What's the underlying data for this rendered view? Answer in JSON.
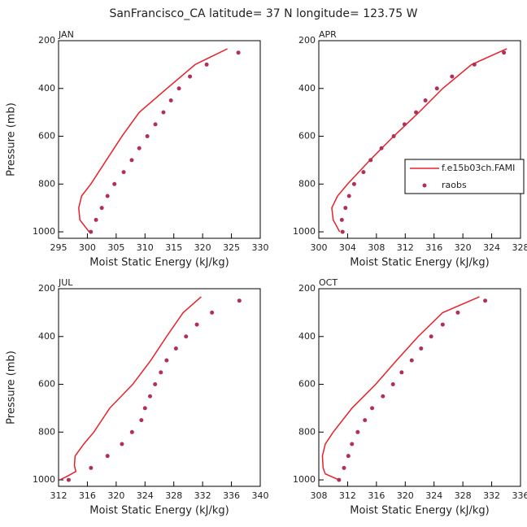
{
  "title": "SanFrancisco_CA  latitude= 37 N longitude= 123.75 W",
  "chart_data": [
    {
      "type": "line",
      "title": "JAN",
      "xlabel": "Moist Static Energy (kJ/kg)",
      "ylabel": "Pressure (mb)",
      "xlim": [
        295,
        330
      ],
      "xticks": [
        295,
        300,
        305,
        310,
        315,
        320,
        325,
        330
      ],
      "ylim": [
        1027,
        200
      ],
      "yticks": [
        200,
        400,
        600,
        800,
        1000
      ],
      "series": [
        {
          "name": "f.e15b03ch.FAMI",
          "color": "#e8202a",
          "style": "line",
          "x": [
            300.3,
            298.7,
            298.5,
            299,
            300.6,
            306,
            309,
            313.8,
            318.7,
            324.3
          ],
          "values": [
            1000,
            950,
            900,
            850,
            800,
            600,
            500,
            400,
            300,
            234
          ]
        },
        {
          "name": "raobs",
          "color": "#b0305a",
          "style": "points",
          "x": [
            300.6,
            301.5,
            302.5,
            303.5,
            304.7,
            306.3,
            307.7,
            309,
            310.4,
            311.8,
            313.2,
            314.5,
            315.9,
            317.8,
            320.7,
            326.2
          ],
          "values": [
            1000,
            950,
            900,
            850,
            800,
            750,
            700,
            650,
            600,
            550,
            500,
            450,
            400,
            350,
            300,
            250
          ]
        }
      ]
    },
    {
      "type": "line",
      "title": "APR",
      "xlabel": "Moist Static Energy (kJ/kg)",
      "legend": "right",
      "xlim": [
        300,
        328
      ],
      "xticks": [
        300,
        304,
        308,
        312,
        316,
        320,
        324,
        328
      ],
      "ylim": [
        1027,
        200
      ],
      "yticks": [
        200,
        400,
        600,
        800,
        1000
      ],
      "series": [
        {
          "name": "f.e15b03ch.FAMI",
          "color": "#e8202a",
          "style": "line",
          "x": [
            302.9,
            302,
            301.8,
            302.6,
            304,
            307.1,
            310.4,
            313.9,
            317.2,
            321.2,
            326.1
          ],
          "values": [
            1000,
            950,
            900,
            850,
            800,
            700,
            600,
            500,
            400,
            300,
            234
          ]
        },
        {
          "name": "raobs",
          "color": "#b0305a",
          "style": "points",
          "x": [
            303.3,
            303.2,
            303.7,
            304.2,
            304.9,
            306.2,
            307.2,
            308.7,
            310.4,
            311.9,
            313.5,
            314.8,
            316.4,
            318.5,
            321.6,
            325.7
          ],
          "values": [
            1000,
            950,
            900,
            850,
            800,
            750,
            700,
            650,
            600,
            550,
            500,
            450,
            400,
            350,
            300,
            250
          ]
        }
      ]
    },
    {
      "type": "line",
      "title": "JUL",
      "xlabel": "Moist Static Energy (kJ/kg)",
      "ylabel": "Pressure (mb)",
      "xlim": [
        312,
        340
      ],
      "xticks": [
        312,
        316,
        320,
        324,
        328,
        332,
        336,
        340
      ],
      "ylim": [
        1027,
        200
      ],
      "yticks": [
        200,
        400,
        600,
        800,
        1000
      ],
      "series": [
        {
          "name": "f.e15b03ch.FAMI",
          "color": "#e8202a",
          "style": "line",
          "x": [
            312.2,
            313.5,
            314.4,
            314.2,
            314.3,
            315.5,
            316.9,
            319.1,
            322.3,
            324.8,
            327,
            329.3,
            331.8
          ],
          "values": [
            1000,
            980,
            965,
            940,
            900,
            850,
            800,
            700,
            600,
            500,
            400,
            300,
            234
          ]
        },
        {
          "name": "raobs",
          "color": "#b0305a",
          "style": "points",
          "x": [
            313.4,
            316.5,
            318.8,
            320.8,
            322.2,
            323.5,
            324,
            324.7,
            325.4,
            326.2,
            327,
            328.3,
            329.7,
            331.2,
            333.3,
            337.1
          ],
          "values": [
            1000,
            950,
            900,
            850,
            800,
            750,
            700,
            650,
            600,
            550,
            500,
            450,
            400,
            350,
            300,
            250
          ]
        }
      ]
    },
    {
      "type": "line",
      "title": "OCT",
      "xlabel": "Moist Static Energy (kJ/kg)",
      "xlim": [
        308,
        336
      ],
      "xticks": [
        308,
        312,
        316,
        320,
        324,
        328,
        332,
        336
      ],
      "ylim": [
        1027,
        200
      ],
      "yticks": [
        200,
        400,
        600,
        800,
        1000
      ],
      "series": [
        {
          "name": "f.e15b03ch.FAMI",
          "color": "#e8202a",
          "style": "line",
          "x": [
            310.8,
            308.9,
            308.6,
            308.5,
            308.9,
            310,
            312.6,
            315.9,
            318.8,
            321.8,
            325.2,
            330.3
          ],
          "values": [
            1000,
            975,
            950,
            900,
            850,
            800,
            700,
            600,
            500,
            400,
            300,
            234
          ]
        },
        {
          "name": "raobs",
          "color": "#b0305a",
          "style": "points",
          "x": [
            310.8,
            311.5,
            312.1,
            312.6,
            313.4,
            314.4,
            315.4,
            316.9,
            318.3,
            319.5,
            320.9,
            322.2,
            323.6,
            325.2,
            327.3,
            331.1
          ],
          "values": [
            1000,
            950,
            900,
            850,
            800,
            750,
            700,
            650,
            600,
            550,
            500,
            450,
            400,
            350,
            300,
            250
          ]
        }
      ]
    }
  ]
}
